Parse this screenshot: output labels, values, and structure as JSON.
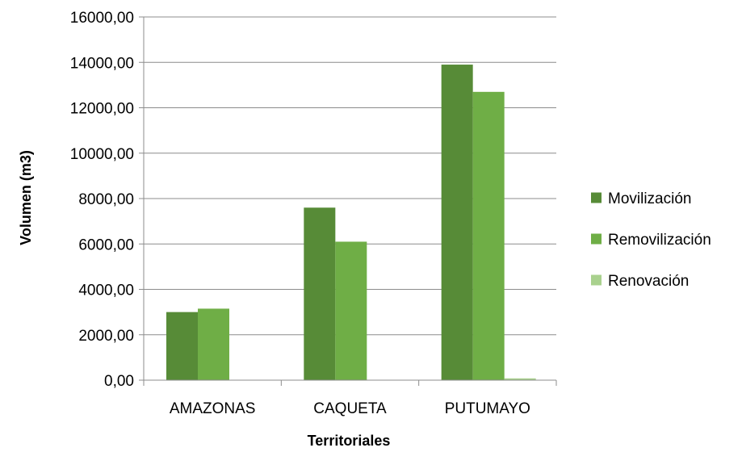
{
  "chart_data": {
    "type": "bar",
    "title": "",
    "xlabel": "Territoriales",
    "ylabel": "Volumen (m3)",
    "ylim": [
      0,
      16000
    ],
    "yticks": [
      0,
      2000,
      4000,
      6000,
      8000,
      10000,
      12000,
      14000,
      16000
    ],
    "ytick_labels": [
      "0,00",
      "2000,00",
      "4000,00",
      "6000,00",
      "8000,00",
      "10000,00",
      "12000,00",
      "14000,00",
      "16000,00"
    ],
    "grid": true,
    "legend_position": "right",
    "categories": [
      "AMAZONAS",
      "CAQUETA",
      "PUTUMAYO"
    ],
    "series": [
      {
        "name": "Movilización",
        "color": "#578B37",
        "values": [
          3000,
          7600,
          13900
        ]
      },
      {
        "name": "Removilización",
        "color": "#6FAE46",
        "values": [
          3150,
          6100,
          12700
        ]
      },
      {
        "name": "Renovación",
        "color": "#A9D18E",
        "values": [
          0,
          0,
          80
        ]
      }
    ]
  }
}
